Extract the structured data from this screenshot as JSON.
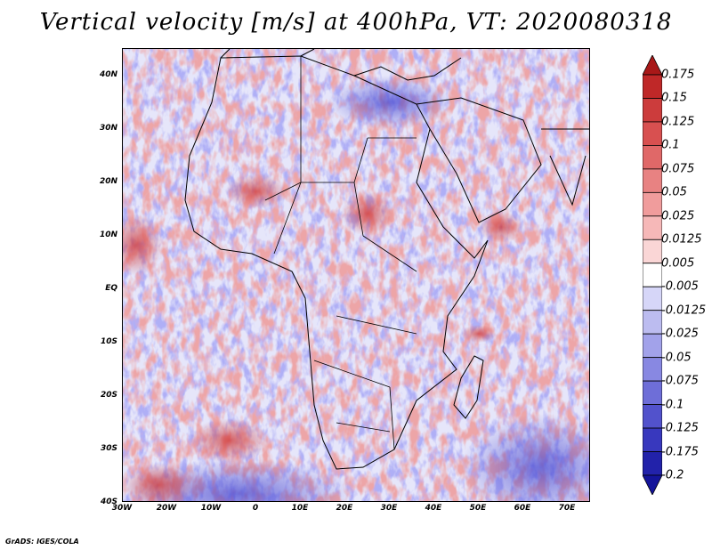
{
  "title": "Vertical velocity [m/s] at 400hPa, VT: 2020080318",
  "credit": "GrADS: IGES/COLA",
  "map": {
    "variable": "Vertical velocity",
    "units": "m/s",
    "level": "400hPa",
    "valid_time": "2020080318",
    "lat_labels": [
      "40N",
      "30N",
      "20N",
      "10N",
      "EQ",
      "10S",
      "20S",
      "30S",
      "40S"
    ],
    "lon_labels": [
      "30W",
      "20W",
      "10W",
      "0",
      "10E",
      "20E",
      "30E",
      "40E",
      "50E",
      "60E",
      "70E"
    ],
    "region": "Africa"
  },
  "colorbar": {
    "labels": [
      "0.175",
      "0.15",
      "0.125",
      "0.1",
      "0.075",
      "0.05",
      "0.025",
      "0.0125",
      "0.005",
      "-0.005",
      "-0.0125",
      "-0.025",
      "-0.05",
      "-0.075",
      "-0.1",
      "-0.125",
      "-0.175",
      "-0.2"
    ],
    "colors": [
      "#a81818",
      "#bf2828",
      "#cc3c3c",
      "#d85050",
      "#e06868",
      "#e88282",
      "#f09c9c",
      "#f6b8b8",
      "#fad6d6",
      "#ffffff",
      "#d6d6f8",
      "#bcbcf0",
      "#a2a2ea",
      "#8888e2",
      "#6e6ed8",
      "#5252cc",
      "#3838be",
      "#2222aa",
      "#14149a"
    ]
  }
}
